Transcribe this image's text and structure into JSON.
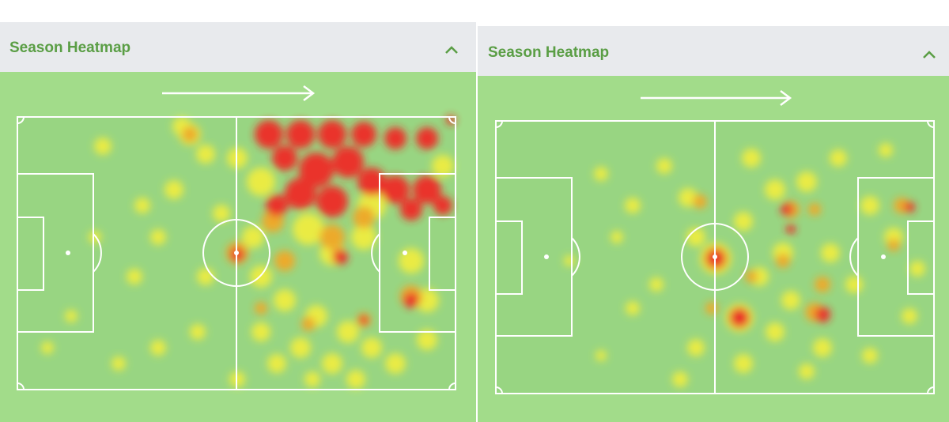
{
  "panels": [
    {
      "title": "Season Heatmap"
    },
    {
      "title": "Season Heatmap"
    }
  ]
}
